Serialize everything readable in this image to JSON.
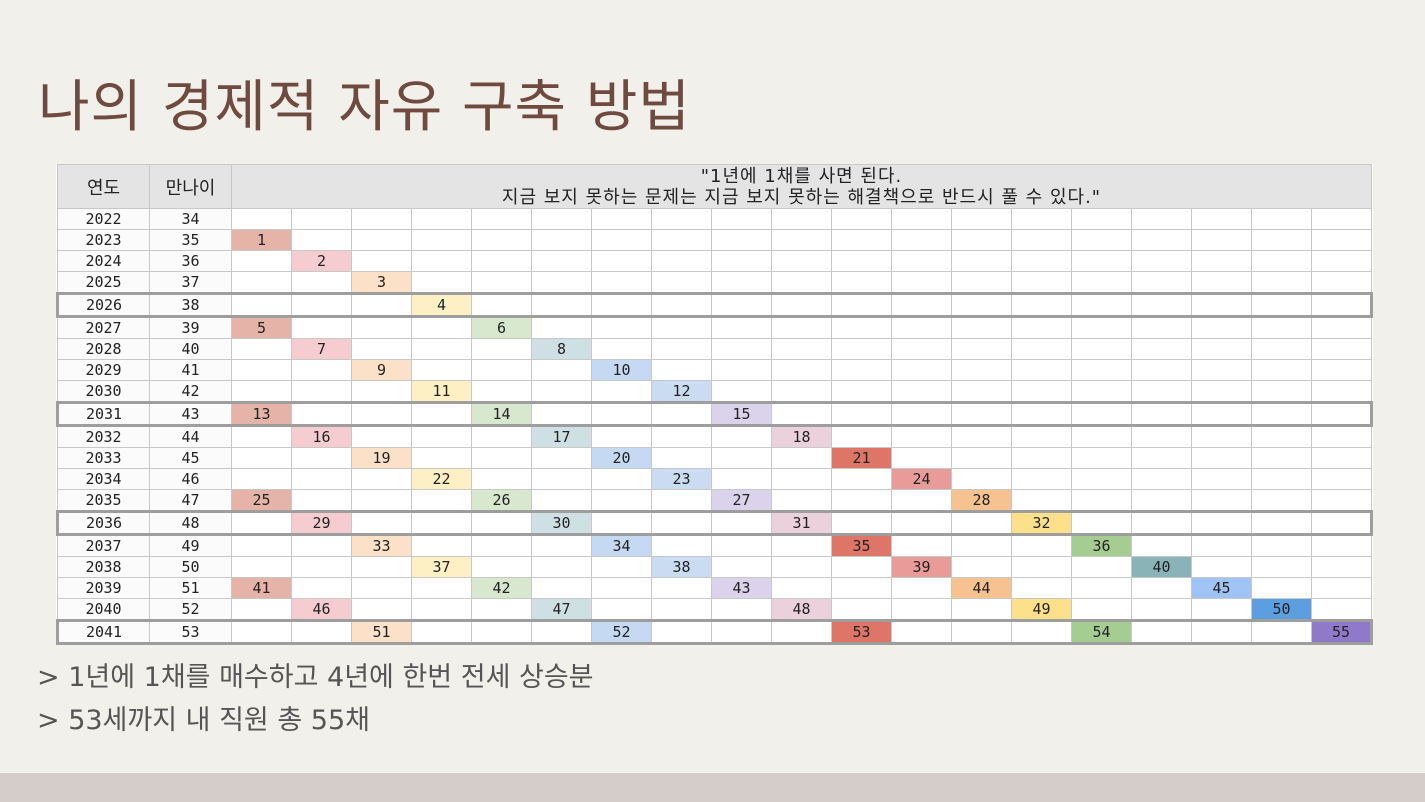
{
  "title": "나의 경제적 자유 구축 방법",
  "table": {
    "col_year": "연도",
    "col_age": "만나이",
    "quote_line1": "\"1년에 1채를 사면 된다.",
    "quote_line2": "지금 보지 못하는 문제는 지금 보지 못하는 해결책으로 반드시 풀 수 있다.\"",
    "num_cols": 19,
    "rows": [
      {
        "year": "2022",
        "age": "34",
        "highlight": false,
        "cells": []
      },
      {
        "year": "2023",
        "age": "35",
        "highlight": false,
        "cells": [
          {
            "col": 0,
            "value": "1"
          }
        ]
      },
      {
        "year": "2024",
        "age": "36",
        "highlight": false,
        "cells": [
          {
            "col": 1,
            "value": "2"
          }
        ]
      },
      {
        "year": "2025",
        "age": "37",
        "highlight": false,
        "cells": [
          {
            "col": 2,
            "value": "3"
          }
        ]
      },
      {
        "year": "2026",
        "age": "38",
        "highlight": true,
        "cells": [
          {
            "col": 3,
            "value": "4"
          }
        ]
      },
      {
        "year": "2027",
        "age": "39",
        "highlight": false,
        "cells": [
          {
            "col": 0,
            "value": "5"
          },
          {
            "col": 4,
            "value": "6"
          }
        ]
      },
      {
        "year": "2028",
        "age": "40",
        "highlight": false,
        "cells": [
          {
            "col": 1,
            "value": "7"
          },
          {
            "col": 5,
            "value": "8"
          }
        ]
      },
      {
        "year": "2029",
        "age": "41",
        "highlight": false,
        "cells": [
          {
            "col": 2,
            "value": "9"
          },
          {
            "col": 6,
            "value": "10"
          }
        ]
      },
      {
        "year": "2030",
        "age": "42",
        "highlight": false,
        "cells": [
          {
            "col": 3,
            "value": "11"
          },
          {
            "col": 7,
            "value": "12"
          }
        ]
      },
      {
        "year": "2031",
        "age": "43",
        "highlight": true,
        "cells": [
          {
            "col": 0,
            "value": "13"
          },
          {
            "col": 4,
            "value": "14"
          },
          {
            "col": 8,
            "value": "15"
          }
        ]
      },
      {
        "year": "2032",
        "age": "44",
        "highlight": false,
        "cells": [
          {
            "col": 1,
            "value": "16"
          },
          {
            "col": 5,
            "value": "17"
          },
          {
            "col": 9,
            "value": "18"
          }
        ]
      },
      {
        "year": "2033",
        "age": "45",
        "highlight": false,
        "cells": [
          {
            "col": 2,
            "value": "19"
          },
          {
            "col": 6,
            "value": "20"
          },
          {
            "col": 10,
            "value": "21"
          }
        ]
      },
      {
        "year": "2034",
        "age": "46",
        "highlight": false,
        "cells": [
          {
            "col": 3,
            "value": "22"
          },
          {
            "col": 7,
            "value": "23"
          },
          {
            "col": 11,
            "value": "24"
          }
        ]
      },
      {
        "year": "2035",
        "age": "47",
        "highlight": false,
        "cells": [
          {
            "col": 0,
            "value": "25"
          },
          {
            "col": 4,
            "value": "26"
          },
          {
            "col": 8,
            "value": "27"
          },
          {
            "col": 12,
            "value": "28"
          }
        ]
      },
      {
        "year": "2036",
        "age": "48",
        "highlight": true,
        "cells": [
          {
            "col": 1,
            "value": "29"
          },
          {
            "col": 5,
            "value": "30"
          },
          {
            "col": 9,
            "value": "31"
          },
          {
            "col": 13,
            "value": "32"
          }
        ]
      },
      {
        "year": "2037",
        "age": "49",
        "highlight": false,
        "cells": [
          {
            "col": 2,
            "value": "33"
          },
          {
            "col": 6,
            "value": "34"
          },
          {
            "col": 10,
            "value": "35"
          },
          {
            "col": 14,
            "value": "36"
          }
        ]
      },
      {
        "year": "2038",
        "age": "50",
        "highlight": false,
        "cells": [
          {
            "col": 3,
            "value": "37"
          },
          {
            "col": 7,
            "value": "38"
          },
          {
            "col": 11,
            "value": "39"
          },
          {
            "col": 15,
            "value": "40"
          }
        ]
      },
      {
        "year": "2039",
        "age": "51",
        "highlight": false,
        "cells": [
          {
            "col": 0,
            "value": "41"
          },
          {
            "col": 4,
            "value": "42"
          },
          {
            "col": 8,
            "value": "43"
          },
          {
            "col": 12,
            "value": "44"
          },
          {
            "col": 16,
            "value": "45"
          }
        ]
      },
      {
        "year": "2040",
        "age": "52",
        "highlight": false,
        "cells": [
          {
            "col": 1,
            "value": "46"
          },
          {
            "col": 5,
            "value": "47"
          },
          {
            "col": 9,
            "value": "48"
          },
          {
            "col": 13,
            "value": "49"
          },
          {
            "col": 17,
            "value": "50"
          }
        ]
      },
      {
        "year": "2041",
        "age": "53",
        "highlight": true,
        "cells": [
          {
            "col": 2,
            "value": "51"
          },
          {
            "col": 6,
            "value": "52"
          },
          {
            "col": 10,
            "value": "53"
          },
          {
            "col": 14,
            "value": "54"
          },
          {
            "col": 18,
            "value": "55"
          }
        ]
      }
    ]
  },
  "notes": [
    "> 1년에 1채를 매수하고 4년에 한번 전세 상승분",
    "> 53세까지 내 직원 총 55채"
  ]
}
